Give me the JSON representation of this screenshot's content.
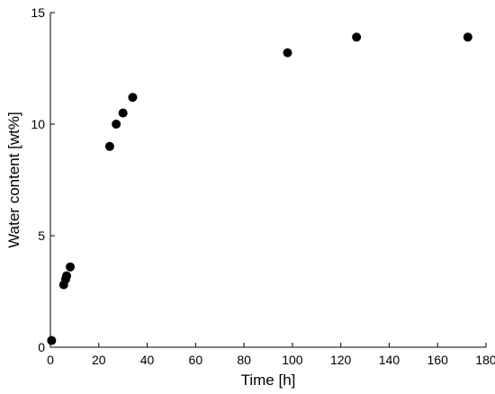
{
  "chart_data": {
    "type": "scatter",
    "title": "",
    "xlabel": "Time [h]",
    "ylabel": "Water content [wt%]",
    "xlim": [
      0,
      180
    ],
    "ylim": [
      0,
      15
    ],
    "xticks": [
      0,
      20,
      40,
      60,
      80,
      100,
      120,
      140,
      160,
      180
    ],
    "yticks": [
      0,
      5,
      10,
      15
    ],
    "grid": false,
    "marker_color": "#000000",
    "series": [
      {
        "x": [
          0.5,
          5.5,
          6.3,
          6.7,
          8.2,
          24.5,
          27.2,
          30,
          34,
          98,
          126.5,
          172.5
        ],
        "y": [
          0.3,
          2.8,
          3.05,
          3.2,
          3.6,
          9.0,
          10.0,
          10.5,
          11.2,
          13.2,
          13.9,
          13.9
        ]
      }
    ]
  }
}
